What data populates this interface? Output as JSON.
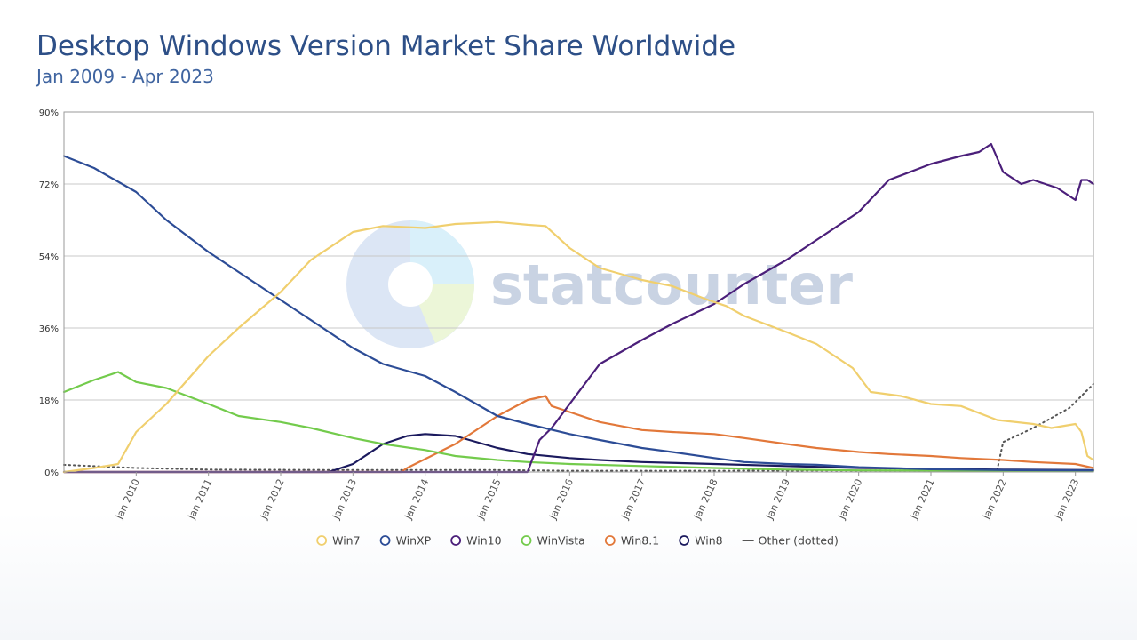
{
  "title": "Desktop Windows Version Market Share Worldwide",
  "subtitle": "Jan 2009 - Apr 2023",
  "watermark": "statcounter",
  "chart_data": {
    "type": "line",
    "title": "Desktop Windows Version Market Share Worldwide",
    "subtitle": "Jan 2009 - Apr 2023",
    "x_range": [
      "2009-01",
      "2023-04"
    ],
    "ylim": [
      0,
      90
    ],
    "y_ticks": [
      "0%",
      "18%",
      "36%",
      "54%",
      "72%",
      "90%"
    ],
    "x_ticks": [
      "Jan 2010",
      "Jan 2011",
      "Jan 2012",
      "Jan 2013",
      "Jan 2014",
      "Jan 2015",
      "Jan 2016",
      "Jan 2017",
      "Jan 2018",
      "Jan 2019",
      "Jan 2020",
      "Jan 2021",
      "Jan 2022",
      "Jan 2023"
    ],
    "grid": true,
    "legend_position": "bottom",
    "series": [
      {
        "name": "Win7",
        "color": "#f0cf6e",
        "points": [
          [
            "2009-01",
            0
          ],
          [
            "2009-06",
            1
          ],
          [
            "2009-10",
            2
          ],
          [
            "2010-01",
            10
          ],
          [
            "2010-06",
            17
          ],
          [
            "2011-01",
            29
          ],
          [
            "2011-06",
            36
          ],
          [
            "2012-01",
            45
          ],
          [
            "2012-06",
            53
          ],
          [
            "2013-01",
            60
          ],
          [
            "2013-06",
            61.5
          ],
          [
            "2014-01",
            61
          ],
          [
            "2014-06",
            62
          ],
          [
            "2015-01",
            62.5
          ],
          [
            "2015-06",
            61.8
          ],
          [
            "2015-09",
            61.5
          ],
          [
            "2016-01",
            56
          ],
          [
            "2016-06",
            51
          ],
          [
            "2017-01",
            48
          ],
          [
            "2017-06",
            46.5
          ],
          [
            "2017-12",
            43
          ],
          [
            "2018-03",
            41.5
          ],
          [
            "2018-06",
            39
          ],
          [
            "2019-01",
            35
          ],
          [
            "2019-06",
            32
          ],
          [
            "2019-12",
            26
          ],
          [
            "2020-03",
            20
          ],
          [
            "2020-08",
            19
          ],
          [
            "2021-01",
            17
          ],
          [
            "2021-06",
            16.5
          ],
          [
            "2021-12",
            13
          ],
          [
            "2022-06",
            12
          ],
          [
            "2022-09",
            11
          ],
          [
            "2023-01",
            12
          ],
          [
            "2023-02",
            10
          ],
          [
            "2023-03",
            4
          ],
          [
            "2023-04",
            3
          ]
        ]
      },
      {
        "name": "WinXP",
        "color": "#2c4c96",
        "points": [
          [
            "2009-01",
            79
          ],
          [
            "2009-06",
            76
          ],
          [
            "2010-01",
            70
          ],
          [
            "2010-06",
            63
          ],
          [
            "2011-01",
            55
          ],
          [
            "2011-06",
            50
          ],
          [
            "2012-01",
            43
          ],
          [
            "2012-06",
            38
          ],
          [
            "2013-01",
            31
          ],
          [
            "2013-06",
            27
          ],
          [
            "2014-01",
            24
          ],
          [
            "2014-06",
            20
          ],
          [
            "2015-01",
            14
          ],
          [
            "2015-06",
            12
          ],
          [
            "2016-01",
            9.5
          ],
          [
            "2016-06",
            8
          ],
          [
            "2017-01",
            6
          ],
          [
            "2017-06",
            5
          ],
          [
            "2018-01",
            3.5
          ],
          [
            "2018-06",
            2.5
          ],
          [
            "2019-01",
            2
          ],
          [
            "2019-06",
            1.8
          ],
          [
            "2020-01",
            1.2
          ],
          [
            "2021-01",
            0.7
          ],
          [
            "2022-01",
            0.5
          ],
          [
            "2023-04",
            0.4
          ]
        ]
      },
      {
        "name": "Win10",
        "color": "#4b1f7a",
        "points": [
          [
            "2009-01",
            0
          ],
          [
            "2015-06",
            0
          ],
          [
            "2015-08",
            8
          ],
          [
            "2015-10",
            11
          ],
          [
            "2016-01",
            17
          ],
          [
            "2016-06",
            27
          ],
          [
            "2017-01",
            33
          ],
          [
            "2017-06",
            37
          ],
          [
            "2018-01",
            42
          ],
          [
            "2018-06",
            47
          ],
          [
            "2019-01",
            53
          ],
          [
            "2019-06",
            58
          ],
          [
            "2020-01",
            65
          ],
          [
            "2020-06",
            73
          ],
          [
            "2021-01",
            77
          ],
          [
            "2021-06",
            79
          ],
          [
            "2021-09",
            80
          ],
          [
            "2021-11",
            82
          ],
          [
            "2022-01",
            75
          ],
          [
            "2022-04",
            72
          ],
          [
            "2022-06",
            73
          ],
          [
            "2022-10",
            71
          ],
          [
            "2023-01",
            68
          ],
          [
            "2023-02",
            73
          ],
          [
            "2023-03",
            73
          ],
          [
            "2023-04",
            72
          ]
        ]
      },
      {
        "name": "WinVista",
        "color": "#73cb4c",
        "points": [
          [
            "2009-01",
            20
          ],
          [
            "2009-06",
            23
          ],
          [
            "2009-10",
            25
          ],
          [
            "2010-01",
            22.5
          ],
          [
            "2010-06",
            21
          ],
          [
            "2011-01",
            17
          ],
          [
            "2011-06",
            14
          ],
          [
            "2012-01",
            12.5
          ],
          [
            "2012-06",
            11
          ],
          [
            "2013-01",
            8.5
          ],
          [
            "2013-06",
            7
          ],
          [
            "2014-01",
            5.5
          ],
          [
            "2014-06",
            4
          ],
          [
            "2015-01",
            3
          ],
          [
            "2015-06",
            2.5
          ],
          [
            "2016-01",
            2
          ],
          [
            "2017-01",
            1.5
          ],
          [
            "2018-01",
            1
          ],
          [
            "2019-01",
            0.6
          ],
          [
            "2020-01",
            0.4
          ],
          [
            "2023-04",
            0.3
          ]
        ]
      },
      {
        "name": "Win8.1",
        "color": "#e2783a",
        "points": [
          [
            "2009-01",
            0
          ],
          [
            "2013-09",
            0
          ],
          [
            "2013-10",
            1
          ],
          [
            "2014-06",
            7
          ],
          [
            "2015-01",
            14
          ],
          [
            "2015-06",
            18
          ],
          [
            "2015-09",
            19
          ],
          [
            "2015-10",
            16.5
          ],
          [
            "2016-01",
            15
          ],
          [
            "2016-06",
            12.5
          ],
          [
            "2017-01",
            10.5
          ],
          [
            "2017-06",
            10
          ],
          [
            "2018-01",
            9.5
          ],
          [
            "2018-06",
            8.5
          ],
          [
            "2019-01",
            7
          ],
          [
            "2019-06",
            6
          ],
          [
            "2020-01",
            5
          ],
          [
            "2020-06",
            4.5
          ],
          [
            "2021-01",
            4
          ],
          [
            "2021-06",
            3.5
          ],
          [
            "2022-01",
            3
          ],
          [
            "2022-06",
            2.5
          ],
          [
            "2023-01",
            2
          ],
          [
            "2023-04",
            1
          ]
        ]
      },
      {
        "name": "Win8",
        "color": "#1b1a5e",
        "points": [
          [
            "2009-01",
            0
          ],
          [
            "2012-09",
            0
          ],
          [
            "2012-10",
            0.5
          ],
          [
            "2013-01",
            2
          ],
          [
            "2013-06",
            7
          ],
          [
            "2013-10",
            9
          ],
          [
            "2014-01",
            9.5
          ],
          [
            "2014-06",
            9
          ],
          [
            "2015-01",
            6
          ],
          [
            "2015-06",
            4.5
          ],
          [
            "2016-01",
            3.5
          ],
          [
            "2016-06",
            3
          ],
          [
            "2017-01",
            2.5
          ],
          [
            "2018-01",
            2
          ],
          [
            "2019-01",
            1.5
          ],
          [
            "2020-01",
            1
          ],
          [
            "2021-01",
            0.8
          ],
          [
            "2022-01",
            0.6
          ],
          [
            "2023-04",
            0.5
          ]
        ]
      },
      {
        "name": "Other (dotted)",
        "color": "#555555",
        "dotted": true,
        "points": [
          [
            "2009-01",
            1.8
          ],
          [
            "2010-01",
            1
          ],
          [
            "2011-01",
            0.6
          ],
          [
            "2013-01",
            0.5
          ],
          [
            "2015-01",
            0.5
          ],
          [
            "2016-01",
            0.3
          ],
          [
            "2018-01",
            0.3
          ],
          [
            "2021-01",
            0.4
          ],
          [
            "2021-12",
            0.5
          ],
          [
            "2022-01",
            7.5
          ],
          [
            "2022-06",
            11
          ],
          [
            "2022-12",
            16
          ],
          [
            "2023-04",
            22
          ]
        ]
      }
    ]
  }
}
